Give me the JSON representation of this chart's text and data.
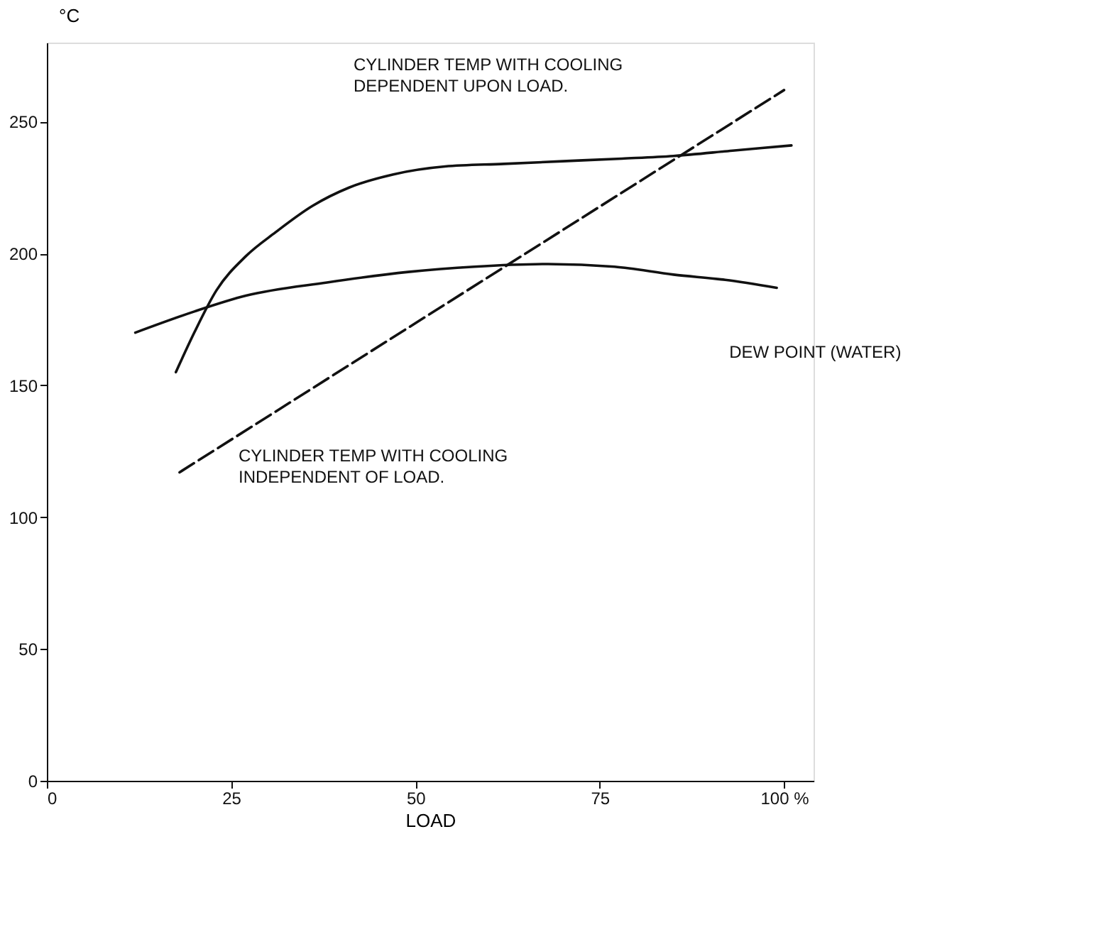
{
  "chart_data": {
    "type": "line",
    "ylabel": "°C",
    "xlabel": "LOAD",
    "xlim": [
      0,
      104
    ],
    "xticks": [
      0,
      25,
      50,
      75,
      {
        "value": 100,
        "label": "100 %"
      }
    ],
    "ylim": [
      0,
      280
    ],
    "yticks": [
      0,
      50,
      100,
      150,
      200,
      250
    ],
    "grid": false,
    "marker": "none",
    "series": [
      {
        "color": "#111111",
        "line_style": "solid",
        "x": [
          17.5,
          20,
          23,
          27,
          31,
          36,
          41,
          47,
          54,
          62,
          70,
          78,
          85,
          93,
          101
        ],
        "values": [
          155,
          170,
          186,
          199,
          208,
          218,
          225,
          230,
          233,
          234,
          235,
          236,
          237,
          239,
          241
        ]
      },
      {
        "color": "#111111",
        "line_style": "solid",
        "x": [
          12,
          20,
          27,
          38,
          49,
          58,
          68,
          77,
          85,
          92,
          99
        ],
        "values": [
          170,
          178,
          184,
          189,
          193,
          195,
          196,
          195,
          192,
          190,
          187
        ]
      },
      {
        "color": "#111111",
        "line_style": "dashed",
        "x": [
          18,
          100
        ],
        "values": [
          117,
          262
        ]
      }
    ],
    "annotations": [
      "CYLINDER TEMP WITH COOLING\nDEPENDENT UPON LOAD.",
      "DEW POINT (WATER)",
      "CYLINDER TEMP WITH COOLING\nINDEPENDENT OF LOAD."
    ]
  }
}
